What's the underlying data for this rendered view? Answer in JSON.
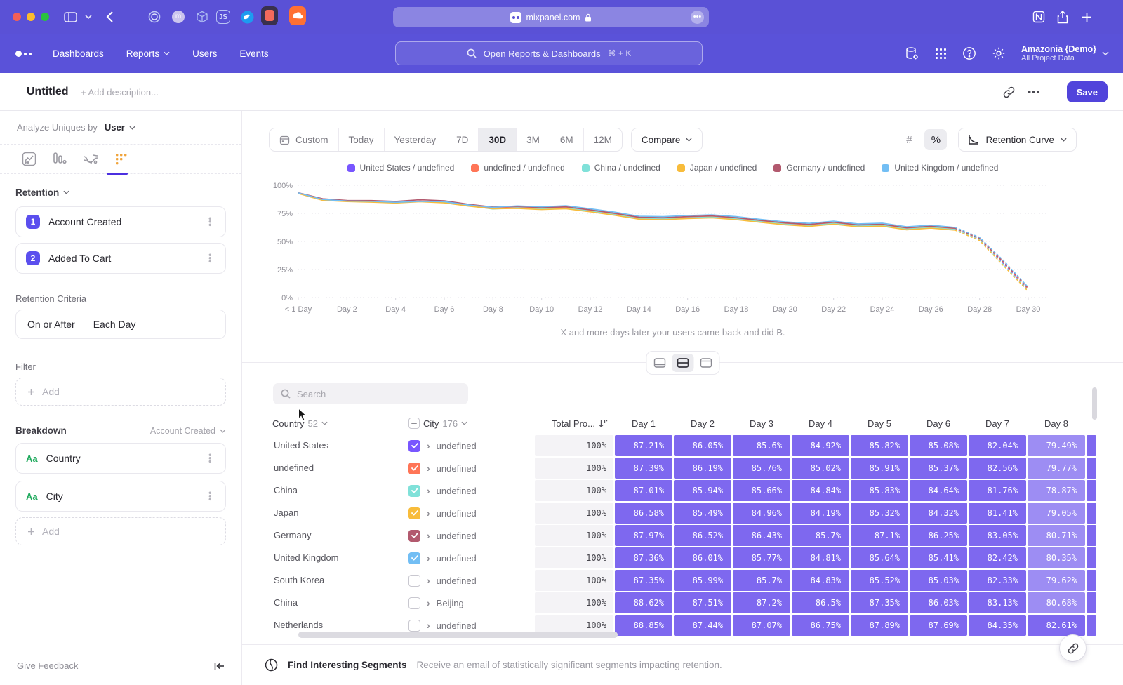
{
  "browser": {
    "url": "mixpanel.com",
    "ext_js_label": "JS",
    "notion_label": "N"
  },
  "nav": {
    "links": [
      "Dashboards",
      "Reports",
      "Users",
      "Events"
    ],
    "search_placeholder": "Open Reports & Dashboards",
    "search_shortcut": "⌘ + K",
    "project_name": "Amazonia {Demo}",
    "project_scope": "All Project Data"
  },
  "header": {
    "title": "Untitled",
    "description_placeholder": "+ Add description...",
    "save_label": "Save"
  },
  "sidebar": {
    "analyze_label": "Analyze Uniques by",
    "analyze_value": "User",
    "retention_label": "Retention",
    "steps": [
      {
        "num": "1",
        "label": "Account Created"
      },
      {
        "num": "2",
        "label": "Added To Cart"
      }
    ],
    "criteria_label": "Retention Criteria",
    "criteria_value_1": "On or After",
    "criteria_value_2": "Each Day",
    "filter_label": "Filter",
    "add_label": "Add",
    "breakdown_label": "Breakdown",
    "breakdown_scope": "Account Created",
    "breakdowns": [
      {
        "type_label": "Aa",
        "label": "Country"
      },
      {
        "type_label": "Aa",
        "label": "City"
      }
    ],
    "give_feedback": "Give Feedback"
  },
  "toolbar": {
    "ranges": [
      "Custom",
      "Today",
      "Yesterday",
      "7D",
      "30D",
      "3M",
      "6M",
      "12M"
    ],
    "active_range": "30D",
    "compare_label": "Compare",
    "format_number": "#",
    "format_percent": "%",
    "view_label": "Retention Curve"
  },
  "chart_data": {
    "type": "line",
    "title": "Retention Curve",
    "ylim": [
      0,
      100
    ],
    "y_ticks": [
      "0%",
      "25%",
      "50%",
      "75%",
      "100%"
    ],
    "x_tick_labels": [
      "< 1 Day",
      "Day 2",
      "Day 4",
      "Day 6",
      "Day 8",
      "Day 10",
      "Day 12",
      "Day 14",
      "Day 16",
      "Day 18",
      "Day 20",
      "Day 22",
      "Day 24",
      "Day 26",
      "Day 28",
      "Day 30"
    ],
    "dashed_from_index": 27,
    "grid": true,
    "legend_position": "top",
    "series": [
      {
        "name": "United States / undefined",
        "color": "#7856FF",
        "values": [
          93.0,
          87.21,
          86.05,
          85.6,
          84.92,
          85.82,
          85.08,
          82.04,
          79.49,
          80.4,
          79.4,
          80.1,
          77.4,
          74.3,
          70.8,
          70.4,
          71.4,
          72.0,
          70.4,
          68.0,
          65.8,
          64.4,
          66.4,
          64.0,
          64.6,
          61.4,
          62.8,
          61.0,
          52.0,
          30.0,
          7.0
        ]
      },
      {
        "name": "undefined / undefined",
        "color": "#FF7557",
        "values": [
          93.1,
          87.39,
          86.19,
          85.76,
          85.02,
          85.91,
          85.37,
          82.56,
          79.77,
          80.7,
          79.7,
          80.4,
          77.7,
          74.6,
          71.1,
          70.7,
          71.7,
          72.3,
          70.7,
          68.3,
          66.1,
          64.7,
          66.7,
          64.3,
          64.9,
          61.7,
          63.1,
          61.3,
          52.4,
          30.8,
          7.8
        ]
      },
      {
        "name": "China / undefined",
        "color": "#80E1D9",
        "values": [
          92.9,
          87.01,
          85.94,
          85.66,
          84.84,
          85.83,
          84.64,
          81.76,
          78.87,
          80.0,
          79.0,
          79.7,
          77.0,
          73.9,
          70.4,
          70.0,
          71.0,
          71.6,
          70.0,
          67.6,
          65.4,
          64.0,
          66.0,
          63.6,
          64.2,
          61.0,
          62.4,
          60.6,
          51.4,
          28.8,
          6.2
        ]
      },
      {
        "name": "Japan / undefined",
        "color": "#F8BC3B",
        "values": [
          92.7,
          86.58,
          85.49,
          84.96,
          84.19,
          85.32,
          84.32,
          81.41,
          79.05,
          79.4,
          78.4,
          79.1,
          76.4,
          73.3,
          69.8,
          69.4,
          70.4,
          71.0,
          69.4,
          67.0,
          64.8,
          63.4,
          65.4,
          63.0,
          63.6,
          60.4,
          61.8,
          60.0,
          50.8,
          28.0,
          5.5
        ]
      },
      {
        "name": "Germany / undefined",
        "color": "#B2596E",
        "values": [
          93.3,
          87.97,
          86.52,
          86.43,
          85.7,
          87.1,
          86.25,
          83.05,
          80.71,
          81.2,
          80.2,
          80.9,
          78.2,
          75.1,
          71.6,
          71.2,
          72.2,
          72.8,
          71.2,
          68.8,
          66.6,
          65.2,
          67.2,
          64.8,
          65.4,
          62.2,
          63.6,
          61.8,
          52.9,
          31.5,
          8.5
        ]
      },
      {
        "name": "United Kingdom / undefined",
        "color": "#72BEF4",
        "values": [
          93.2,
          87.36,
          86.01,
          85.77,
          84.81,
          85.64,
          85.41,
          82.42,
          80.35,
          81.7,
          80.9,
          81.8,
          79.1,
          76.1,
          72.5,
          72.1,
          73.1,
          73.7,
          72.1,
          69.7,
          67.5,
          66.1,
          68.1,
          65.7,
          66.3,
          63.1,
          64.5,
          62.5,
          53.6,
          32.6,
          9.2
        ]
      }
    ]
  },
  "main": {
    "caption": "X and more days later your users came back and did B."
  },
  "table": {
    "search_placeholder": "Search",
    "country_header": "Country",
    "country_count": "52",
    "city_header": "City",
    "city_count": "176",
    "total_header": "Total Pro...",
    "day_headers": [
      "Day 1",
      "Day 2",
      "Day 3",
      "Day 4",
      "Day 5",
      "Day 6",
      "Day 7",
      "Day 8"
    ],
    "rows": [
      {
        "country": "United States",
        "city": "undefined",
        "checked": true,
        "check_color": "#7856FF",
        "total": "100%",
        "days": [
          "87.21%",
          "86.05%",
          "85.6%",
          "84.92%",
          "85.82%",
          "85.08%",
          "82.04%",
          "79.49%"
        ]
      },
      {
        "country": "undefined",
        "city": "undefined",
        "checked": true,
        "check_color": "#FF7557",
        "total": "100%",
        "days": [
          "87.39%",
          "86.19%",
          "85.76%",
          "85.02%",
          "85.91%",
          "85.37%",
          "82.56%",
          "79.77%"
        ]
      },
      {
        "country": "China",
        "city": "undefined",
        "checked": true,
        "check_color": "#80E1D9",
        "total": "100%",
        "days": [
          "87.01%",
          "85.94%",
          "85.66%",
          "84.84%",
          "85.83%",
          "84.64%",
          "81.76%",
          "78.87%"
        ]
      },
      {
        "country": "Japan",
        "city": "undefined",
        "checked": true,
        "check_color": "#F8BC3B",
        "total": "100%",
        "days": [
          "86.58%",
          "85.49%",
          "84.96%",
          "84.19%",
          "85.32%",
          "84.32%",
          "81.41%",
          "79.05%"
        ]
      },
      {
        "country": "Germany",
        "city": "undefined",
        "checked": true,
        "check_color": "#B2596E",
        "total": "100%",
        "days": [
          "87.97%",
          "86.52%",
          "86.43%",
          "85.7%",
          "87.1%",
          "86.25%",
          "83.05%",
          "80.71%"
        ]
      },
      {
        "country": "United Kingdom",
        "city": "undefined",
        "checked": true,
        "check_color": "#72BEF4",
        "total": "100%",
        "days": [
          "87.36%",
          "86.01%",
          "85.77%",
          "84.81%",
          "85.64%",
          "85.41%",
          "82.42%",
          "80.35%"
        ]
      },
      {
        "country": "South Korea",
        "city": "undefined",
        "checked": false,
        "check_color": "",
        "total": "100%",
        "days": [
          "87.35%",
          "85.99%",
          "85.7%",
          "84.83%",
          "85.52%",
          "85.03%",
          "82.33%",
          "79.62%"
        ]
      },
      {
        "country": "China",
        "city": "Beijing",
        "checked": false,
        "check_color": "",
        "total": "100%",
        "days": [
          "88.62%",
          "87.51%",
          "87.2%",
          "86.5%",
          "87.35%",
          "86.03%",
          "83.13%",
          "80.68%"
        ]
      },
      {
        "country": "Netherlands",
        "city": "undefined",
        "checked": false,
        "check_color": "",
        "total": "100%",
        "days": [
          "88.85%",
          "87.44%",
          "87.07%",
          "86.75%",
          "87.89%",
          "87.69%",
          "84.35%",
          "82.61%"
        ]
      }
    ]
  },
  "footer": {
    "title": "Find Interesting Segments",
    "subtitle": "Receive an email of statistically significant segments impacting retention."
  }
}
